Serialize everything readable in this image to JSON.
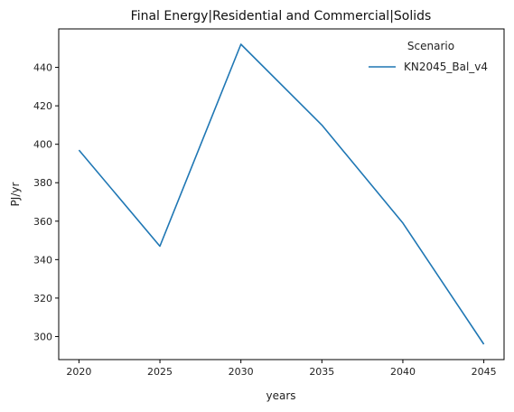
{
  "chart_data": {
    "type": "line",
    "title": "Final Energy|Residential and Commercial|Solids",
    "xlabel": "years",
    "ylabel": "PJ/yr",
    "x": [
      2020,
      2025,
      2030,
      2035,
      2040,
      2045
    ],
    "xlim": [
      2018.75,
      2046.25
    ],
    "ylim": [
      288,
      460
    ],
    "xticks": [
      2020,
      2025,
      2030,
      2035,
      2040,
      2045
    ],
    "yticks": [
      300,
      320,
      340,
      360,
      380,
      400,
      420,
      440
    ],
    "grid": false,
    "legend": {
      "title": "Scenario",
      "placement": "top-right"
    },
    "series": [
      {
        "name": "KN2045_Bal_v4",
        "color": "#1f77b4",
        "values": [
          397,
          347,
          452,
          410,
          359,
          296
        ]
      }
    ]
  }
}
